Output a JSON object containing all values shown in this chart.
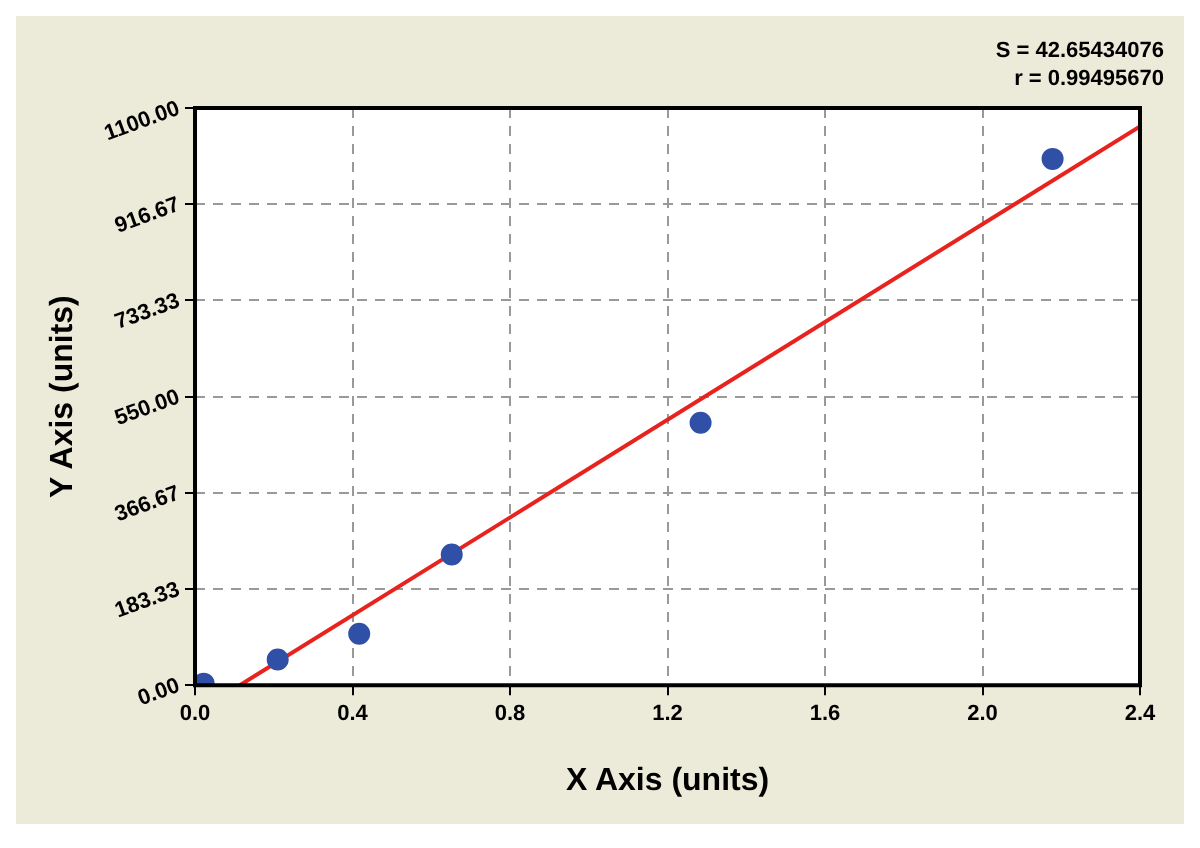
{
  "chart_data": {
    "type": "scatter",
    "xlabel": "X Axis (units)",
    "ylabel": "Y Axis (units)",
    "annotations": [
      "S = 42.65434076",
      "r = 0.99495670"
    ],
    "series": [
      {
        "type": "scatter",
        "color": "#3050a8",
        "x": [
          0.022,
          0.21,
          0.417,
          0.652,
          1.284,
          2.178
        ],
        "values": [
          3,
          49,
          98,
          249,
          500,
          1003
        ],
        "marker": "circle"
      },
      {
        "type": "line",
        "color": "#e8231e",
        "x": [
          0.114,
          2.4
        ],
        "values": [
          0,
          1065
        ],
        "marker": "none",
        "line_style": "solid"
      }
    ],
    "xlim": [
      0,
      2.4
    ],
    "xticks": [
      {
        "value": 0,
        "label": "0.0"
      },
      {
        "value": 0.4,
        "label": "0.4"
      },
      {
        "value": 0.8,
        "label": "0.8"
      },
      {
        "value": 1.2,
        "label": "1.2"
      },
      {
        "value": 1.6,
        "label": "1.6"
      },
      {
        "value": 2.0,
        "label": "2.0"
      },
      {
        "value": 2.4,
        "label": "2.4"
      }
    ],
    "ylim": [
      0,
      1100
    ],
    "yticks": [
      {
        "value": 0,
        "label": "0.00"
      },
      {
        "value": 183.33,
        "label": "183.33"
      },
      {
        "value": 366.67,
        "label": "366.67"
      },
      {
        "value": 550,
        "label": "550.00"
      },
      {
        "value": 733.33,
        "label": "733.33"
      },
      {
        "value": 916.67,
        "label": "916.67"
      },
      {
        "value": 1100,
        "label": "1100.00"
      }
    ],
    "grid": true,
    "legend": false
  }
}
